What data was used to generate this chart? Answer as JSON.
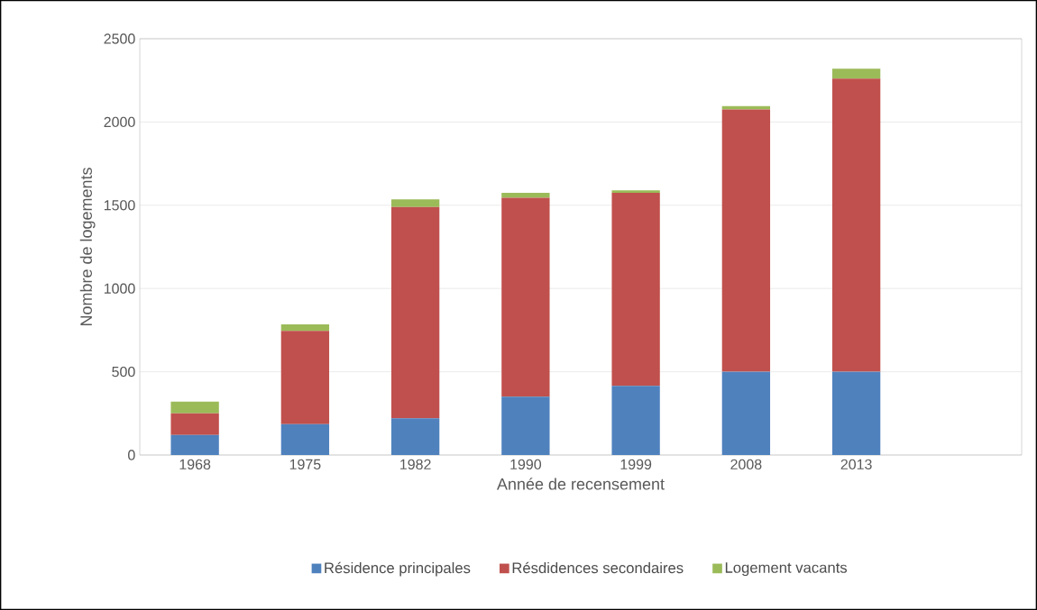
{
  "chart_data": {
    "type": "bar",
    "stacked": true,
    "xlabel": "Année de recensement",
    "ylabel": "Nombre de logements",
    "categories": [
      "1968",
      "1975",
      "1982",
      "1990",
      "1999",
      "2008",
      "2013",
      null
    ],
    "series": [
      {
        "name": "Résidence principales",
        "color": "#4f81bd",
        "values": [
          120,
          185,
          220,
          350,
          415,
          500,
          500,
          null
        ]
      },
      {
        "name": "Résdidences secondaires",
        "color": "#c0504d",
        "values": [
          130,
          560,
          1270,
          1195,
          1160,
          1575,
          1760,
          null
        ]
      },
      {
        "name": "Logement vacants",
        "color": "#9bbb59",
        "values": [
          70,
          40,
          45,
          30,
          15,
          20,
          60,
          null
        ]
      }
    ],
    "ylim": [
      0,
      2500
    ],
    "yticks": [
      0,
      500,
      1000,
      1500,
      2000,
      2500
    ],
    "grid": "y",
    "legend": "bottom"
  }
}
